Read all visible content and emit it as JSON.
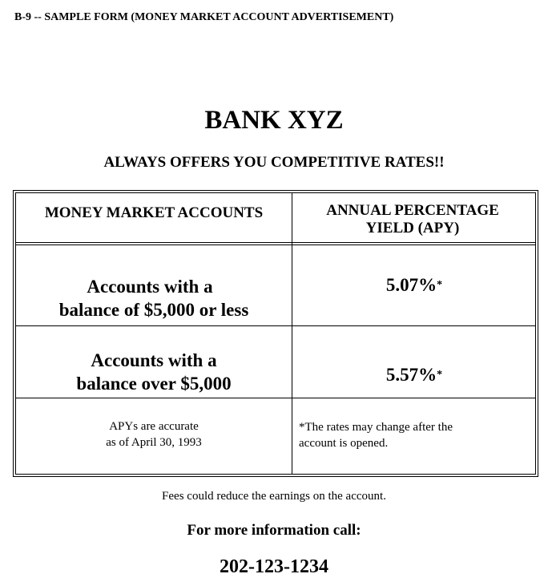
{
  "form_title": "B-9 -- SAMPLE FORM (MONEY MARKET ACCOUNT ADVERTISEMENT)",
  "bank_name": "BANK XYZ",
  "tagline": "ALWAYS OFFERS YOU COMPETITIVE RATES!!",
  "table": {
    "headers": [
      "MONEY MARKET ACCOUNTS",
      "ANNUAL PERCENTAGE YIELD (APY)"
    ],
    "rows": [
      {
        "account_line1": "Accounts with a",
        "account_line2": "balance of $5,000 or less",
        "apy": "5.07%",
        "mark": "*"
      },
      {
        "account_line1": "Accounts with a",
        "account_line2": "balance over $5,000",
        "apy": "5.57%",
        "mark": "*"
      }
    ],
    "footnote_left_line1": "APYs are accurate",
    "footnote_left_line2": "as of April 30, 1993",
    "footnote_right_line1": "*The rates may change after the",
    "footnote_right_line2": "account is opened."
  },
  "fees_note": "Fees could reduce the earnings on the account.",
  "more_info": "For more information call:",
  "phone": "202-123-1234"
}
